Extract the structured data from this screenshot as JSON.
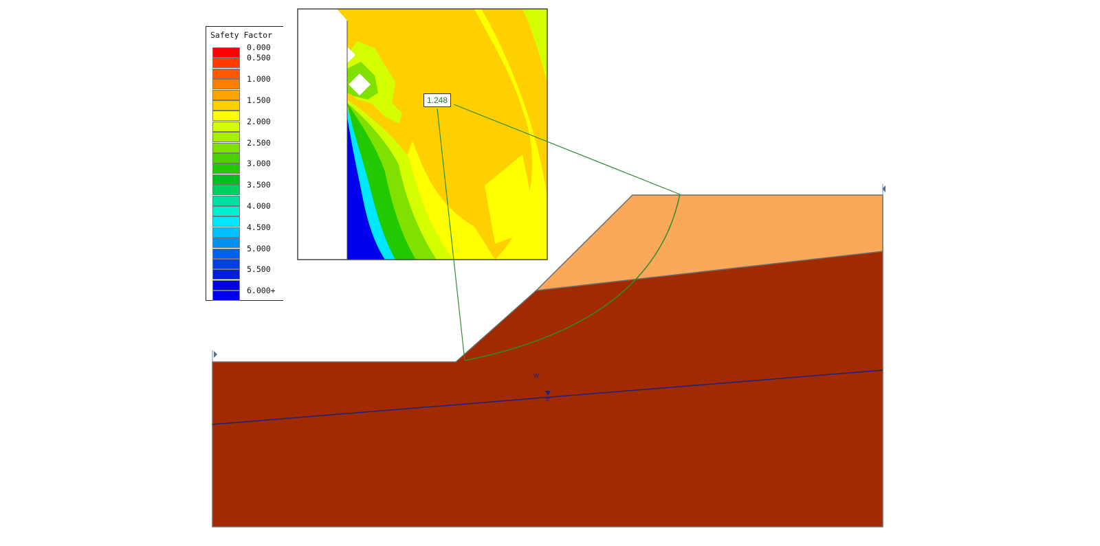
{
  "legend": {
    "title": "Safety Factor",
    "entries": [
      {
        "label": "0.000",
        "color": "#ff0000"
      },
      {
        "label": "0.500",
        "color": "#ff3b00"
      },
      {
        "label": "",
        "color": "#ff5a00"
      },
      {
        "label": "1.000",
        "color": "#ff8000"
      },
      {
        "label": "",
        "color": "#ffa400"
      },
      {
        "label": "1.500",
        "color": "#ffd000"
      },
      {
        "label": "",
        "color": "#ffff00"
      },
      {
        "label": "2.000",
        "color": "#d4ff00"
      },
      {
        "label": "",
        "color": "#a8f000"
      },
      {
        "label": "2.500",
        "color": "#80e000"
      },
      {
        "label": "",
        "color": "#4cd000"
      },
      {
        "label": "3.000",
        "color": "#22c800"
      },
      {
        "label": "",
        "color": "#00c020"
      },
      {
        "label": "3.500",
        "color": "#00d060"
      },
      {
        "label": "",
        "color": "#00e0a0"
      },
      {
        "label": "4.000",
        "color": "#00f0d0"
      },
      {
        "label": "",
        "color": "#00e8ff"
      },
      {
        "label": "4.500",
        "color": "#00c0ff"
      },
      {
        "label": "",
        "color": "#0090f0"
      },
      {
        "label": "5.000",
        "color": "#0060f0"
      },
      {
        "label": "",
        "color": "#0040e0"
      },
      {
        "label": "5.500",
        "color": "#0020d8"
      },
      {
        "label": "",
        "color": "#0000e0"
      },
      {
        "label": "6.000+",
        "color": "#0000f0"
      }
    ]
  },
  "critical_surface": {
    "safety_factor_label": "1.248",
    "color": "#2e8b2e"
  },
  "water_table": {
    "symbol": "W",
    "color": "#1a237e"
  },
  "materials": {
    "upper_layer_color": "#fba85b",
    "lower_layer_color": "#a12a00",
    "outline_color": "#6b6b6b"
  },
  "contour_colors": {
    "deep_blue": "#0000ee",
    "cyan": "#00e8ff",
    "green": "#22c800",
    "light_green": "#80e000",
    "yellow_green": "#d4ff00",
    "yellow": "#ffff00",
    "gold": "#ffd000"
  }
}
